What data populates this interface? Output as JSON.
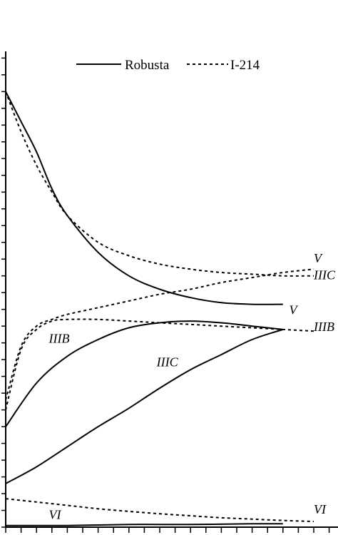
{
  "chart_data": {
    "type": "line",
    "title": "",
    "xlabel": "",
    "ylabel": "",
    "grid": false,
    "legend_placement": "top-right",
    "legend": [
      {
        "label": "Robusta",
        "style": "solid"
      },
      {
        "label": "I-214",
        "style": "dashed"
      }
    ],
    "series": [
      {
        "name": "Robusta",
        "curve": "V",
        "style": "solid",
        "x": [
          0,
          0.05,
          0.1,
          0.15,
          0.2,
          0.3,
          0.4,
          0.5,
          0.6,
          0.7,
          0.8,
          0.9
        ],
        "y": [
          100,
          91,
          82,
          71,
          63,
          52,
          45,
          41,
          38.5,
          37,
          36.5,
          36.5
        ]
      },
      {
        "name": "I-214",
        "curve": "V",
        "style": "dashed",
        "x": [
          0,
          0.05,
          0.1,
          0.15,
          0.2,
          0.3,
          0.4,
          0.5,
          0.6,
          0.7,
          0.8,
          0.9,
          1.0
        ],
        "y": [
          100,
          88,
          78,
          70,
          63,
          55,
          51,
          48.5,
          47,
          46,
          45.5,
          45,
          45
        ]
      },
      {
        "name": "Robusta",
        "curve": "IIIB",
        "style": "solid",
        "x": [
          0,
          0.1,
          0.2,
          0.3,
          0.4,
          0.5,
          0.6,
          0.7,
          0.8,
          0.9
        ],
        "y": [
          0,
          13,
          21,
          26,
          29.5,
          31,
          31.5,
          31,
          30,
          29
        ]
      },
      {
        "name": "I-214",
        "curve": "IIIB",
        "style": "dashed",
        "x": [
          0,
          0.05,
          0.1,
          0.15,
          0.2,
          0.3,
          0.4,
          0.5,
          0.6,
          0.7,
          0.8,
          0.9,
          1.0
        ],
        "y": [
          5,
          23,
          29,
          31.5,
          32,
          32,
          31.5,
          31,
          30.5,
          30,
          29.5,
          29,
          28.5
        ]
      },
      {
        "name": "Robusta",
        "curve": "IIIC",
        "style": "solid",
        "x": [
          0,
          0.1,
          0.2,
          0.3,
          0.4,
          0.5,
          0.6,
          0.7,
          0.8,
          0.9
        ],
        "y": [
          -17,
          -12,
          -6,
          0,
          5.5,
          11.5,
          17,
          21.5,
          26,
          29
        ]
      },
      {
        "name": "I-214",
        "curve": "IIIC",
        "style": "dashed",
        "x": [
          0,
          0.05,
          0.1,
          0.15,
          0.2,
          0.3,
          0.4,
          0.5,
          0.6,
          0.7,
          0.8,
          0.9,
          1.0
        ],
        "y": [
          8,
          24,
          30,
          32,
          33.5,
          35.5,
          37.5,
          39.5,
          41,
          43,
          44.5,
          46,
          47
        ]
      },
      {
        "name": "Robusta",
        "curve": "VI",
        "style": "solid",
        "x": [
          0,
          0.2,
          0.4,
          0.6,
          0.8,
          0.9
        ],
        "y": [
          -29.5,
          -29.5,
          -29.2,
          -29.2,
          -29,
          -29
        ]
      },
      {
        "name": "I-214",
        "curve": "VI",
        "style": "dashed",
        "x": [
          0,
          0.1,
          0.2,
          0.3,
          0.4,
          0.5,
          0.6,
          0.7,
          0.8,
          0.9,
          1.0
        ],
        "y": [
          -21.5,
          -22.5,
          -23.5,
          -24.5,
          -25.3,
          -26,
          -26.6,
          -27.2,
          -27.6,
          -28,
          -28.3
        ]
      }
    ],
    "curve_labels": [
      {
        "text": "V",
        "x": 1.0,
        "y": 49
      },
      {
        "text": "V",
        "x": 0.92,
        "y": 33.5
      },
      {
        "text": "IIIC",
        "x": 1.0,
        "y": 44
      },
      {
        "text": "IIIB",
        "x": 1.0,
        "y": 28.5
      },
      {
        "text": "IIIB",
        "x": 0.14,
        "y": 25
      },
      {
        "text": "IIIC",
        "x": 0.49,
        "y": 18
      },
      {
        "text": "VI",
        "x": 0.14,
        "y": -27.5
      },
      {
        "text": "VI",
        "x": 1.0,
        "y": -26
      }
    ],
    "xlim": [
      0,
      1
    ],
    "ylim": [
      -30,
      112
    ]
  }
}
